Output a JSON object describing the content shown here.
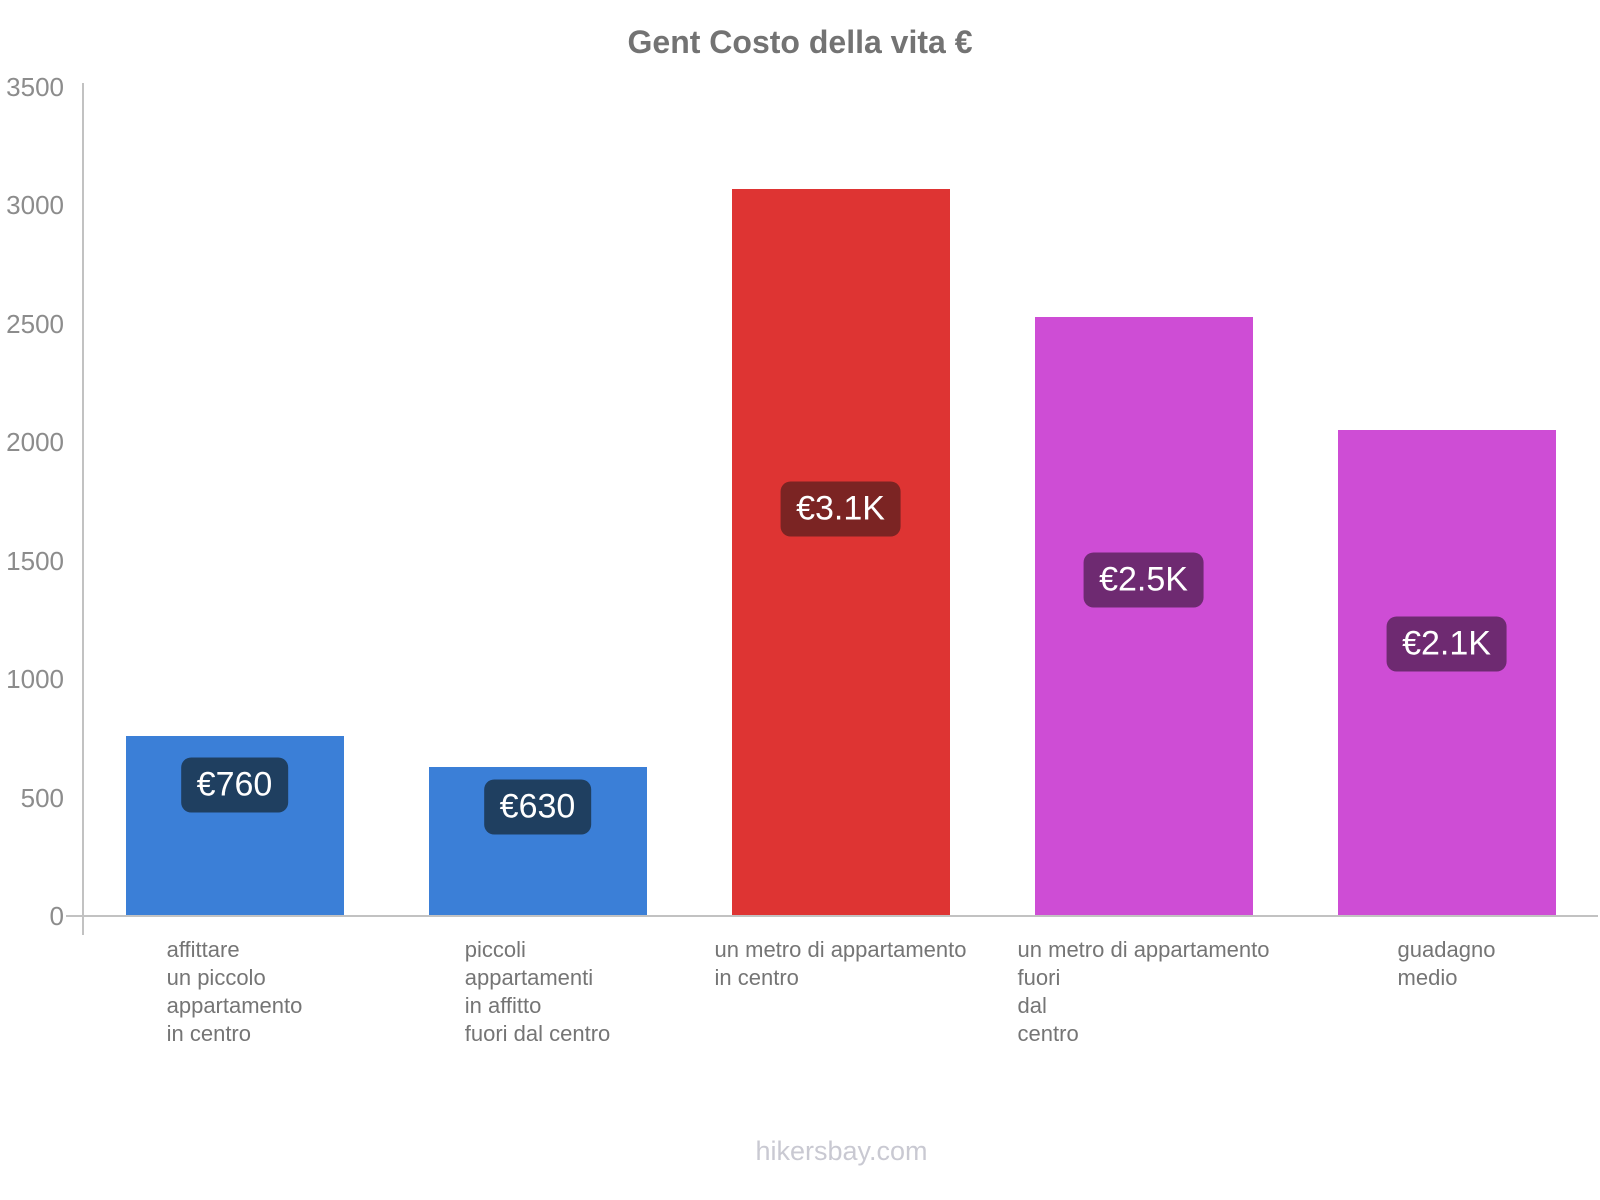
{
  "title": "Gent Costo della vita €",
  "footer": "hikersbay.com",
  "colors": {
    "axis": "#c2c2c2",
    "tick_text": "#8c8c8c",
    "category_text": "#757575",
    "title_text": "#737373",
    "footer_text": "#c9c9d2",
    "blue_bar": "#3b7fd7",
    "blue_badge": "#1f3f60",
    "red_bar": "#de3433",
    "red_badge": "#7b2423",
    "magenta_bar": "#ce4dd5",
    "magenta_badge": "#6e2a71"
  },
  "chart_data": {
    "type": "bar",
    "title": "Gent Costo della vita €",
    "xlabel": "",
    "ylabel": "",
    "ylim": [
      0,
      3500
    ],
    "yticks": [
      0,
      500,
      1000,
      1500,
      2000,
      2500,
      3000,
      3500
    ],
    "grid": false,
    "legend": false,
    "categories": [
      "affittare un piccolo appartamento in centro",
      "piccoli appartamenti in affitto fuori dal centro",
      "un metro di appartamento in centro",
      "un metro di appartamento fuori dal centro",
      "guadagno medio"
    ],
    "bars": [
      {
        "label_lines": [
          "affittare",
          "un piccolo",
          "appartamento",
          "in centro"
        ],
        "value": 760,
        "value_label": "€760",
        "bar_color": "#3b7fd7",
        "badge_color": "#1f3f60"
      },
      {
        "label_lines": [
          "piccoli",
          "appartamenti",
          "in affitto",
          "fuori dal centro"
        ],
        "value": 630,
        "value_label": "€630",
        "bar_color": "#3b7fd7",
        "badge_color": "#1f3f60"
      },
      {
        "label_lines": [
          "un metro di appartamento",
          "in centro"
        ],
        "value": 3070,
        "value_label": "€3.1K",
        "bar_color": "#de3433",
        "badge_color": "#7b2423"
      },
      {
        "label_lines": [
          "un metro di appartamento",
          "fuori",
          "dal",
          "centro"
        ],
        "value": 2530,
        "value_label": "€2.5K",
        "bar_color": "#ce4dd5",
        "badge_color": "#6e2a71"
      },
      {
        "label_lines": [
          "guadagno",
          "medio"
        ],
        "value": 2050,
        "value_label": "€2.1K",
        "bar_color": "#ce4dd5",
        "badge_color": "#6e2a71"
      }
    ]
  }
}
